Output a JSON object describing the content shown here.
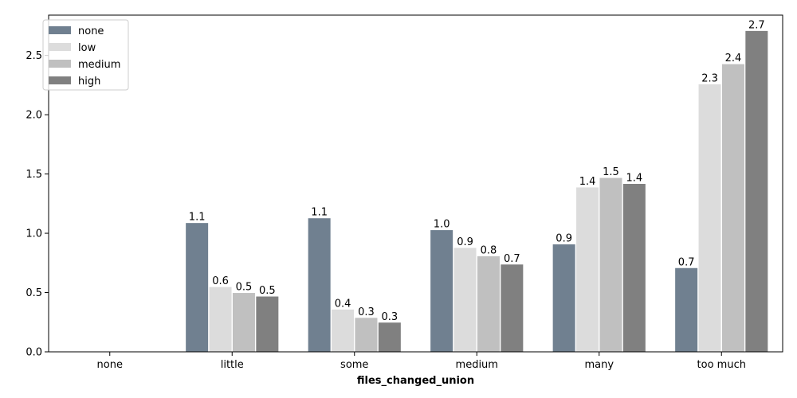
{
  "chart_data": {
    "type": "bar",
    "title": "",
    "xlabel": "files_changed_union",
    "ylabel": "",
    "categories": [
      "none",
      "little",
      "some",
      "medium",
      "many",
      "too much"
    ],
    "series": [
      {
        "name": "none",
        "color": "#708090",
        "values": [
          0,
          1.09,
          1.13,
          1.03,
          0.91,
          0.71
        ],
        "labels": [
          "",
          "1.1",
          "1.1",
          "1.0",
          "0.9",
          "0.7"
        ]
      },
      {
        "name": "low",
        "color": "#dcdcdc",
        "values": [
          0,
          0.55,
          0.36,
          0.88,
          1.39,
          2.26
        ],
        "labels": [
          "",
          "0.6",
          "0.4",
          "0.9",
          "1.4",
          "2.3"
        ]
      },
      {
        "name": "medium",
        "color": "#c0c0c0",
        "values": [
          0,
          0.5,
          0.29,
          0.81,
          1.47,
          2.43
        ],
        "labels": [
          "",
          "0.5",
          "0.3",
          "0.8",
          "1.5",
          "2.4"
        ]
      },
      {
        "name": "high",
        "color": "#808080",
        "values": [
          0,
          0.47,
          0.25,
          0.74,
          1.42,
          2.71
        ],
        "labels": [
          "",
          "0.5",
          "0.3",
          "0.7",
          "1.4",
          "2.7"
        ]
      }
    ],
    "ylim": [
      0,
      2.84
    ],
    "yticks": [
      "0.0",
      "0.5",
      "1.0",
      "1.5",
      "2.0",
      "2.5"
    ],
    "grid": false,
    "legend": "top-left"
  }
}
